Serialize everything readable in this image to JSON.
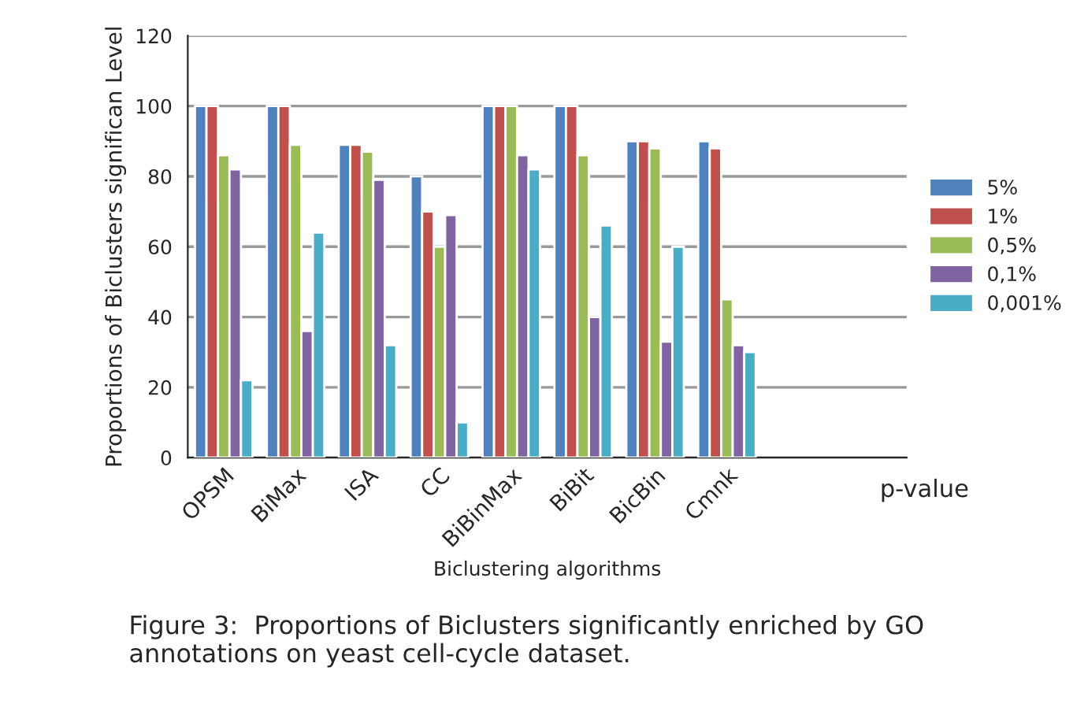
{
  "chart_data": {
    "type": "bar",
    "xlabel": "Biclustering algorithms",
    "ylabel": "Proportions of Biclusters significan Level",
    "categories": [
      "OPSM",
      "BiMax",
      "ISA",
      "CC",
      "BiBinMax",
      "BiBit",
      "BicBin",
      "Cmnk",
      null,
      null
    ],
    "series": [
      {
        "name": "5%",
        "color": "#4f81bd",
        "values": [
          100,
          100,
          89,
          80,
          100,
          100,
          90,
          90,
          null,
          null
        ]
      },
      {
        "name": "1%",
        "color": "#c0504d",
        "values": [
          100,
          100,
          89,
          70,
          100,
          100,
          90,
          88,
          null,
          null
        ]
      },
      {
        "name": "0,5%",
        "color": "#9bbb59",
        "values": [
          86,
          89,
          87,
          60,
          100,
          86,
          88,
          45,
          null,
          null
        ]
      },
      {
        "name": "0,1%",
        "color": "#8064a2",
        "values": [
          82,
          36,
          79,
          69,
          86,
          40,
          33,
          32,
          null,
          null
        ]
      },
      {
        "name": "0,001%",
        "color": "#4bacc6",
        "values": [
          22,
          64,
          32,
          10,
          82,
          66,
          60,
          30,
          null,
          null
        ]
      }
    ],
    "ylim": [
      0,
      120
    ],
    "yticks": [
      0,
      20,
      40,
      60,
      80,
      100,
      120
    ],
    "grid": "y",
    "legend": "right",
    "annotations": [
      "p-value",
      "Figure 3:  Proportions of Biclusters significantly enriched by GO annotations on yeast cell-cycle dataset."
    ]
  }
}
